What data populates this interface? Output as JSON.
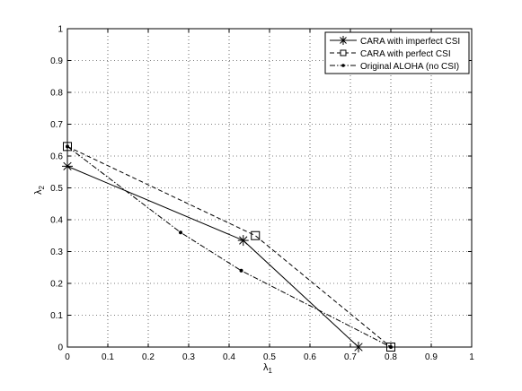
{
  "chart_data": {
    "type": "line",
    "xlabel": "λ",
    "xlabel_sub": "1",
    "ylabel": "λ",
    "ylabel_sub": "2",
    "xlim": [
      0,
      1
    ],
    "ylim": [
      0,
      1
    ],
    "xticks": [
      "0",
      "0.1",
      "0.2",
      "0.3",
      "0.4",
      "0.5",
      "0.6",
      "0.7",
      "0.8",
      "0.9",
      "1"
    ],
    "yticks": [
      "0",
      "0.1",
      "0.2",
      "0.3",
      "0.4",
      "0.5",
      "0.6",
      "0.7",
      "0.8",
      "0.9",
      "1"
    ],
    "grid": true,
    "legend_position": "top-right",
    "series": [
      {
        "name": "CARA with imperfect CSI",
        "line_style": "solid",
        "marker": "asterisk",
        "x": [
          0,
          0.435,
          0.72
        ],
        "y": [
          0.568,
          0.335,
          0
        ]
      },
      {
        "name": "CARA with perfect CSI",
        "line_style": "dashed",
        "marker": "square",
        "x": [
          0,
          0.465,
          0.8
        ],
        "y": [
          0.63,
          0.35,
          0
        ]
      },
      {
        "name": "Original ALOHA (no CSI)",
        "line_style": "dashdot",
        "marker": "dot",
        "x": [
          0,
          0.28,
          0.43,
          0.8
        ],
        "y": [
          0.63,
          0.36,
          0.24,
          0
        ]
      }
    ]
  }
}
